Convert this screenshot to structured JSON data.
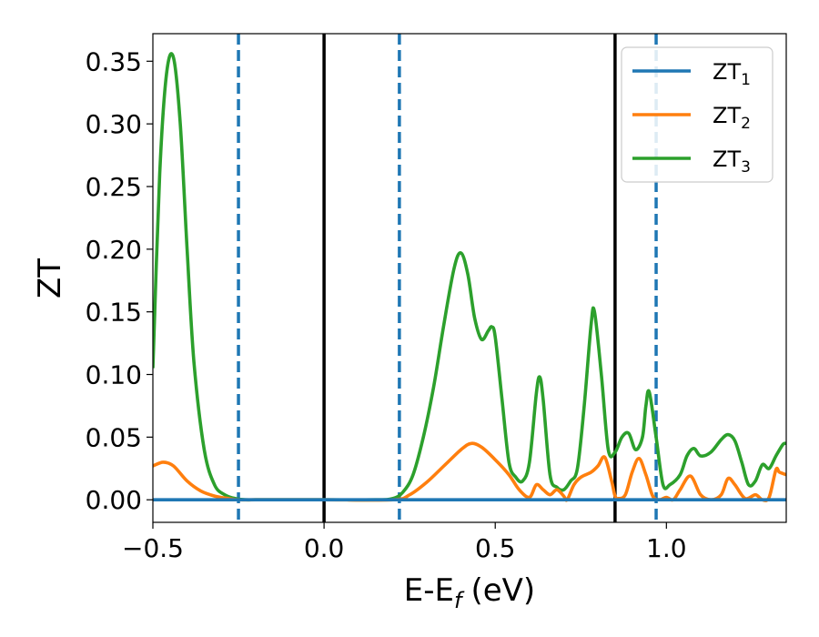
{
  "chart_data": {
    "type": "line",
    "xlabel": "E-E_f (eV)",
    "xlabel_main": "E-E",
    "xlabel_sub": "f",
    "xlabel_unit": "(eV)",
    "ylabel": "ZT",
    "xlim": [
      -0.5,
      1.35
    ],
    "ylim": [
      -0.018,
      0.372
    ],
    "x_ticks": [
      -0.5,
      0.0,
      0.5,
      1.0
    ],
    "x_tick_labels": [
      "−0.5",
      "0.0",
      "0.5",
      "1.0"
    ],
    "y_ticks": [
      0.0,
      0.05,
      0.1,
      0.15,
      0.2,
      0.25,
      0.3,
      0.35
    ],
    "y_tick_labels": [
      "0.00",
      "0.05",
      "0.10",
      "0.15",
      "0.20",
      "0.25",
      "0.30",
      "0.35"
    ],
    "grid": false,
    "legend_position": "top-right",
    "vertical_lines": [
      {
        "x": -0.25,
        "style": "dashed",
        "color": "#1f77b4"
      },
      {
        "x": 0.0,
        "style": "solid",
        "color": "#000000"
      },
      {
        "x": 0.22,
        "style": "dashed",
        "color": "#1f77b4"
      },
      {
        "x": 0.85,
        "style": "solid",
        "color": "#000000"
      },
      {
        "x": 0.97,
        "style": "dashed",
        "color": "#1f77b4"
      }
    ],
    "series": [
      {
        "name": "ZT_1",
        "legend_main": "ZT",
        "legend_sub": "1",
        "color": "#1f77b4",
        "x": [
          -0.5,
          1.35
        ],
        "y": [
          0.0,
          0.0
        ]
      },
      {
        "name": "ZT_2",
        "legend_main": "ZT",
        "legend_sub": "2",
        "color": "#ff7f0e",
        "x": [
          -0.5,
          -0.47,
          -0.44,
          -0.4,
          -0.36,
          -0.32,
          -0.28,
          -0.25,
          -0.2,
          0.0,
          0.2,
          0.25,
          0.3,
          0.35,
          0.4,
          0.43,
          0.46,
          0.5,
          0.54,
          0.57,
          0.6,
          0.62,
          0.64,
          0.66,
          0.68,
          0.7,
          0.71,
          0.73,
          0.75,
          0.78,
          0.8,
          0.82,
          0.84,
          0.85,
          0.86,
          0.88,
          0.9,
          0.92,
          0.94,
          0.96,
          0.98,
          1.0,
          1.02,
          1.04,
          1.07,
          1.1,
          1.13,
          1.16,
          1.18,
          1.2,
          1.23,
          1.26,
          1.28,
          1.3,
          1.32,
          1.33,
          1.35
        ],
        "y": [
          0.027,
          0.03,
          0.027,
          0.015,
          0.007,
          0.003,
          0.001,
          0.0,
          0.0,
          0.0,
          0.0,
          0.004,
          0.014,
          0.027,
          0.04,
          0.045,
          0.042,
          0.032,
          0.02,
          0.008,
          0.002,
          0.012,
          0.008,
          0.004,
          0.008,
          0.003,
          0.0,
          0.012,
          0.018,
          0.022,
          0.027,
          0.034,
          0.015,
          0.003,
          0.001,
          0.004,
          0.022,
          0.033,
          0.02,
          0.003,
          0.0,
          0.002,
          0.0,
          0.008,
          0.019,
          0.004,
          0.0,
          0.004,
          0.017,
          0.012,
          0.001,
          0.004,
          0.0,
          0.002,
          0.024,
          0.022,
          0.02
        ]
      },
      {
        "name": "ZT_3",
        "legend_main": "ZT",
        "legend_sub": "3",
        "color": "#2ca02c",
        "x": [
          -0.5,
          -0.48,
          -0.46,
          -0.44,
          -0.42,
          -0.4,
          -0.38,
          -0.35,
          -0.32,
          -0.29,
          -0.26,
          -0.23,
          -0.2,
          -0.15,
          0.0,
          0.15,
          0.2,
          0.23,
          0.26,
          0.29,
          0.32,
          0.35,
          0.38,
          0.4,
          0.42,
          0.44,
          0.46,
          0.48,
          0.49,
          0.5,
          0.52,
          0.54,
          0.56,
          0.58,
          0.6,
          0.62,
          0.63,
          0.64,
          0.66,
          0.68,
          0.7,
          0.72,
          0.74,
          0.76,
          0.78,
          0.79,
          0.81,
          0.83,
          0.85,
          0.87,
          0.89,
          0.91,
          0.93,
          0.94,
          0.95,
          0.97,
          0.99,
          1.01,
          1.04,
          1.06,
          1.08,
          1.1,
          1.13,
          1.16,
          1.18,
          1.2,
          1.22,
          1.24,
          1.26,
          1.28,
          1.3,
          1.32,
          1.34,
          1.35
        ],
        "y": [
          0.105,
          0.26,
          0.34,
          0.353,
          0.3,
          0.2,
          0.11,
          0.04,
          0.012,
          0.004,
          0.001,
          0.0,
          0.0,
          0.0,
          0.0,
          0.0,
          0.001,
          0.006,
          0.02,
          0.05,
          0.09,
          0.14,
          0.185,
          0.197,
          0.18,
          0.145,
          0.128,
          0.135,
          0.138,
          0.13,
          0.08,
          0.03,
          0.018,
          0.015,
          0.03,
          0.085,
          0.098,
          0.08,
          0.02,
          0.01,
          0.008,
          0.015,
          0.025,
          0.075,
          0.14,
          0.15,
          0.1,
          0.04,
          0.038,
          0.05,
          0.053,
          0.04,
          0.05,
          0.075,
          0.086,
          0.05,
          0.012,
          0.012,
          0.02,
          0.035,
          0.041,
          0.035,
          0.038,
          0.048,
          0.052,
          0.047,
          0.03,
          0.012,
          0.015,
          0.028,
          0.025,
          0.035,
          0.044,
          0.045
        ]
      }
    ]
  }
}
